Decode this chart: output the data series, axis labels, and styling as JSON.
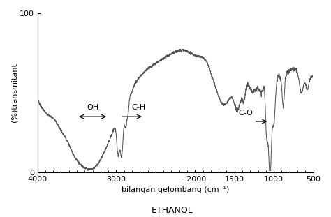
{
  "title": "ETHANOL",
  "xlabel": "bilangan gelombang (cm⁻¹)",
  "ylabel": "(%)transmitant",
  "xlim": [
    4000,
    500
  ],
  "ylim": [
    0,
    100
  ],
  "line_color": "#555555",
  "background_color": "#ffffff",
  "title_fontsize": 9,
  "label_fontsize": 8,
  "tick_fontsize": 8
}
